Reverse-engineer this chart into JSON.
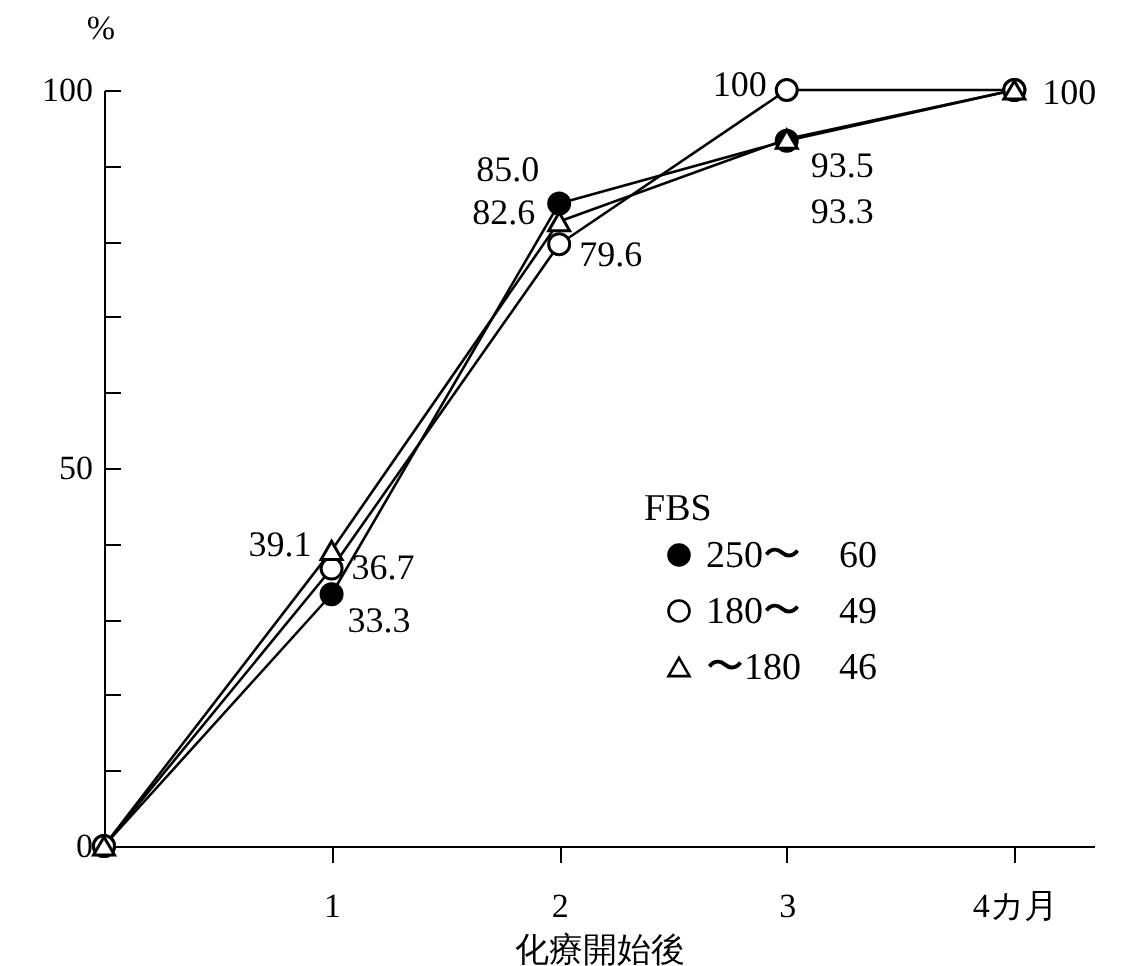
{
  "chart_data": {
    "type": "line",
    "xlabel": "化療開始後",
    "ylabel": "%",
    "legend_title": "FBS",
    "legend": "bottom right",
    "x": [
      0,
      1,
      2,
      3,
      4
    ],
    "xlim": [
      0,
      4.35
    ],
    "xticks": [
      1,
      2,
      3,
      {
        "value": 4,
        "label": "4カ月"
      }
    ],
    "ylim": [
      0,
      100
    ],
    "yticks": [
      0,
      {
        "value": 10,
        "label": null
      },
      {
        "value": 20,
        "label": null
      },
      {
        "value": 30,
        "label": null
      },
      {
        "value": 40,
        "label": null
      },
      50,
      {
        "value": 60,
        "label": null
      },
      {
        "value": 70,
        "label": null
      },
      {
        "value": 80,
        "label": null
      },
      {
        "value": 90,
        "label": null
      },
      100
    ],
    "grid": false,
    "line_style": "solid",
    "series": [
      {
        "name": "250〜　60",
        "color": "#000000",
        "marker": "circle",
        "values": [
          0,
          33.3,
          85.0,
          93.3,
          100
        ],
        "value_labels": [
          null,
          "33.3",
          "85.0",
          "93.3",
          "100"
        ]
      },
      {
        "name": "180〜　49",
        "color": "#000000",
        "marker": "circle",
        "values": [
          0,
          36.7,
          79.6,
          100,
          100
        ],
        "value_labels": [
          null,
          "36.7",
          "79.6",
          "100",
          null
        ]
      },
      {
        "name": "〜180　46",
        "color": "#000000",
        "marker": "triangle",
        "values": [
          0,
          39.1,
          82.6,
          93.5,
          100
        ],
        "value_labels": [
          null,
          "39.1",
          "82.6",
          "93.5",
          null
        ]
      }
    ]
  }
}
